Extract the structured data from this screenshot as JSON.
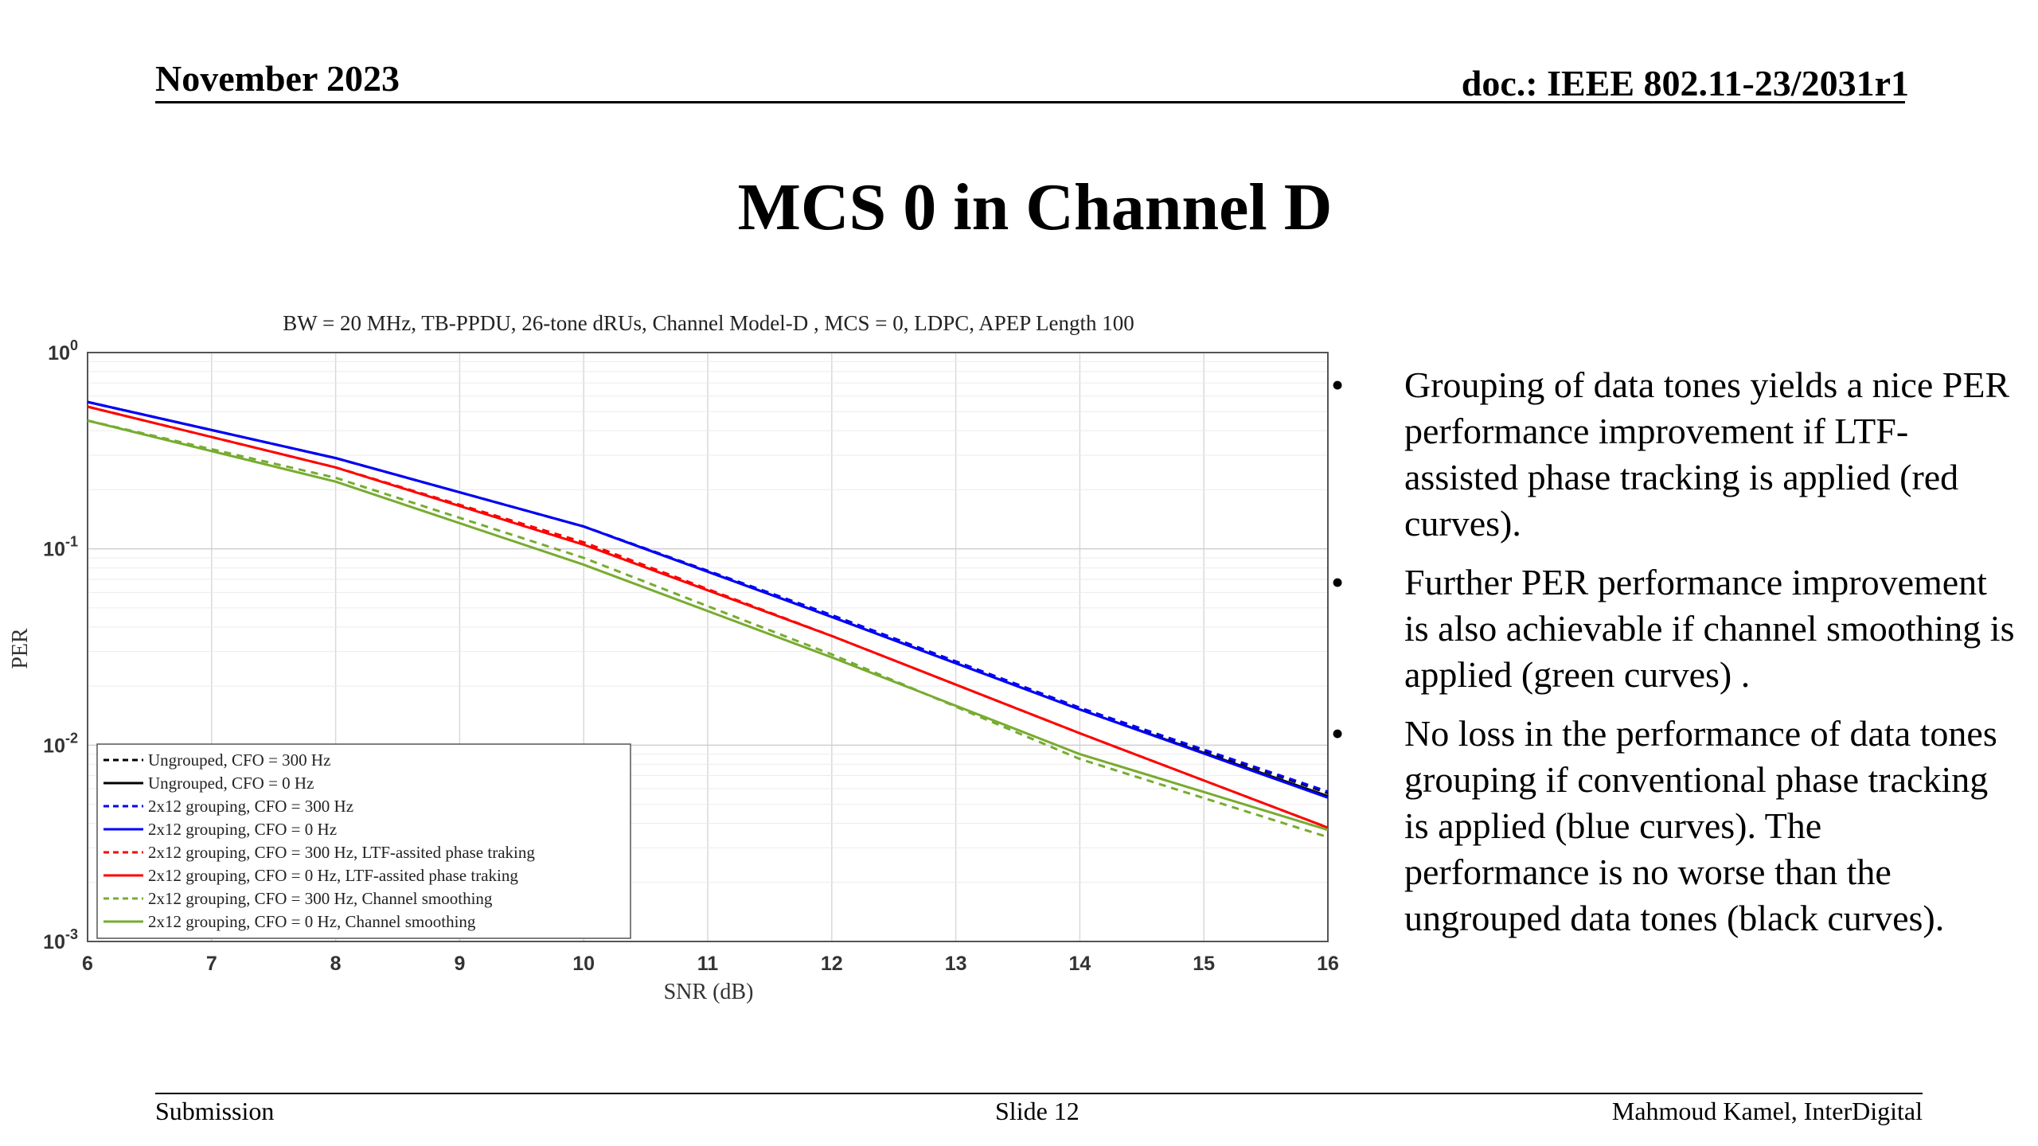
{
  "header": {
    "date": "November 2023",
    "doc": "doc.: IEEE 802.11-23/2031r1"
  },
  "title": "MCS 0 in Channel D",
  "bullets": [
    "Grouping of data tones yields a nice PER performance improvement if LTF-assisted phase tracking is applied (red curves).",
    "Further PER performance improvement is also achievable if channel smoothing is applied (green curves) .",
    "No loss in the performance of data tones grouping if conventional phase tracking is applied (blue curves). The performance is no worse than the ungrouped data tones (black curves)."
  ],
  "bullet_char": "•",
  "footer": {
    "left": "Submission",
    "center": "Slide 12",
    "right": "Mahmoud Kamel, InterDigital"
  },
  "chart_data": {
    "type": "line",
    "title": "BW = 20 MHz, TB-PPDU, 26-tone dRUs, Channel Model-D , MCS = 0, LDPC, APEP Length 100",
    "xlabel": "SNR (dB)",
    "ylabel": "PER",
    "xlim": [
      6,
      16
    ],
    "ylim": [
      0.001,
      1
    ],
    "yscale": "log",
    "grid": true,
    "legend_position": "bottom-left",
    "x_ticks": [
      "6",
      "7",
      "8",
      "9",
      "10",
      "11",
      "12",
      "13",
      "14",
      "15",
      "16"
    ],
    "y_ticks": [
      {
        "base": "10",
        "exp": "0"
      },
      {
        "base": "10",
        "exp": "-1"
      },
      {
        "base": "10",
        "exp": "-2"
      },
      {
        "base": "10",
        "exp": "-3"
      }
    ],
    "x": [
      6,
      8,
      10,
      12,
      14,
      16
    ],
    "series": [
      {
        "name": "Ungrouped, CFO = 300 Hz",
        "color": "#000000",
        "dash": true,
        "values": [
          0.56,
          0.29,
          0.13,
          0.046,
          0.0155,
          0.0057
        ]
      },
      {
        "name": "Ungrouped, CFO = 0 Hz",
        "color": "#000000",
        "dash": false,
        "values": [
          0.56,
          0.29,
          0.13,
          0.045,
          0.0152,
          0.0055
        ]
      },
      {
        "name": "2x12 grouping, CFO = 300 Hz",
        "color": "#0000ff",
        "dash": true,
        "values": [
          0.56,
          0.29,
          0.13,
          0.046,
          0.0155,
          0.0058
        ]
      },
      {
        "name": "2x12 grouping, CFO = 0 Hz",
        "color": "#0000ff",
        "dash": false,
        "values": [
          0.56,
          0.29,
          0.13,
          0.045,
          0.0152,
          0.0054
        ]
      },
      {
        "name": "2x12 grouping, CFO = 300 Hz, LTF-assited phase traking",
        "color": "#ff0000",
        "dash": true,
        "values": [
          0.53,
          0.26,
          0.108,
          0.036,
          0.0115,
          0.0038
        ]
      },
      {
        "name": "2x12 grouping, CFO = 0 Hz, LTF-assited phase traking",
        "color": "#ff0000",
        "dash": false,
        "values": [
          0.53,
          0.26,
          0.105,
          0.036,
          0.0115,
          0.0038
        ]
      },
      {
        "name": "2x12 grouping, CFO = 300 Hz, Channel smoothing",
        "color": "#77ac30",
        "dash": true,
        "values": [
          0.45,
          0.23,
          0.09,
          0.029,
          0.0085,
          0.0034
        ]
      },
      {
        "name": "2x12 grouping, CFO = 0 Hz, Channel smoothing",
        "color": "#77ac30",
        "dash": false,
        "values": [
          0.45,
          0.22,
          0.083,
          0.028,
          0.009,
          0.0037
        ]
      }
    ]
  }
}
